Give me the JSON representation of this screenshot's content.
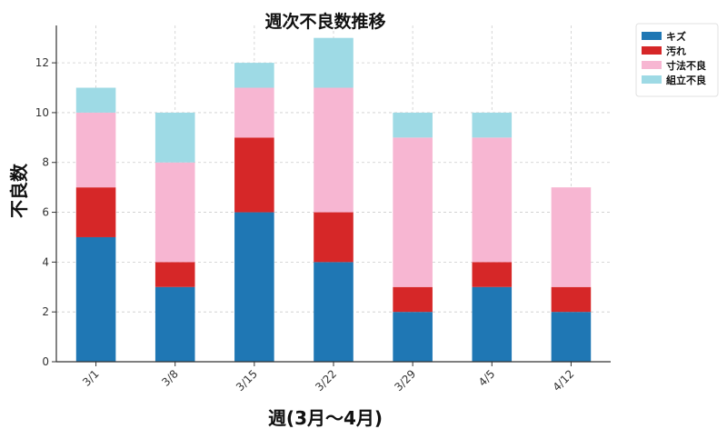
{
  "chart_data": {
    "type": "bar",
    "stacked": true,
    "title": "週次不良数推移",
    "xlabel": "週(3月〜4月)",
    "ylabel": "不良数",
    "categories": [
      "3/1",
      "3/8",
      "3/15",
      "3/22",
      "3/29",
      "4/5",
      "4/12"
    ],
    "series": [
      {
        "name": "キズ",
        "color": "#1f77b4",
        "values": [
          5,
          3,
          6,
          4,
          2,
          3,
          2
        ]
      },
      {
        "name": "汚れ",
        "color": "#d62728",
        "values": [
          2,
          1,
          3,
          2,
          1,
          1,
          1
        ]
      },
      {
        "name": "寸法不良",
        "color": "#f7b6d2",
        "values": [
          3,
          4,
          2,
          5,
          6,
          5,
          4
        ]
      },
      {
        "name": "組立不良",
        "color": "#9edae5",
        "values": [
          1,
          2,
          1,
          2,
          1,
          1,
          0
        ]
      }
    ],
    "ylim": [
      0,
      13.5
    ],
    "yticks": [
      0,
      2,
      4,
      6,
      8,
      10,
      12
    ],
    "grid": true,
    "legend_position": "top-right"
  }
}
